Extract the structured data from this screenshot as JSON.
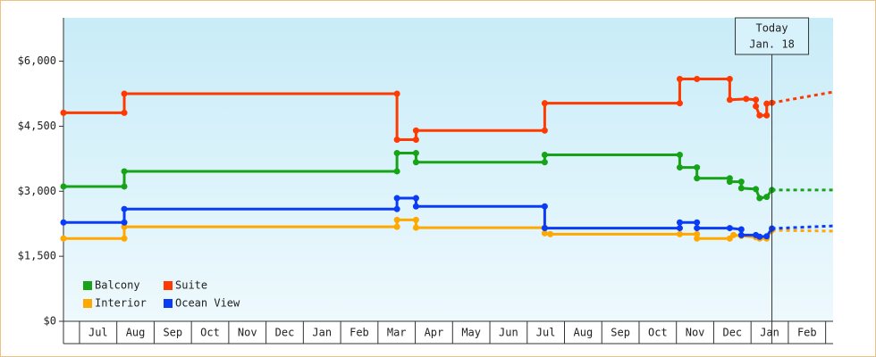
{
  "chart_data": {
    "type": "line",
    "ylim": [
      0,
      7000
    ],
    "yticks": [
      {
        "value": 0,
        "label": "$0"
      },
      {
        "value": 1500,
        "label": "$1,500"
      },
      {
        "value": 3000,
        "label": "$3,000"
      },
      {
        "value": 4500,
        "label": "$4,500"
      },
      {
        "value": 6000,
        "label": "$6,000"
      }
    ],
    "xlim": [
      -0.43,
      20.2
    ],
    "xticks": [
      {
        "value": 0,
        "label": "Jul"
      },
      {
        "value": 1,
        "label": "Aug"
      },
      {
        "value": 2,
        "label": "Sep"
      },
      {
        "value": 3,
        "label": "Oct"
      },
      {
        "value": 4,
        "label": "Nov"
      },
      {
        "value": 5,
        "label": "Dec"
      },
      {
        "value": 6,
        "label": "Jan"
      },
      {
        "value": 7,
        "label": "Feb"
      },
      {
        "value": 8,
        "label": "Mar"
      },
      {
        "value": 9,
        "label": "Apr"
      },
      {
        "value": 10,
        "label": "May"
      },
      {
        "value": 11,
        "label": "Jun"
      },
      {
        "value": 12,
        "label": "Jul"
      },
      {
        "value": 13,
        "label": "Aug"
      },
      {
        "value": 14,
        "label": "Sep"
      },
      {
        "value": 15,
        "label": "Oct"
      },
      {
        "value": 16,
        "label": "Nov"
      },
      {
        "value": 17,
        "label": "Dec"
      },
      {
        "value": 18,
        "label": "Jan"
      },
      {
        "value": 19,
        "label": "Feb"
      }
    ],
    "today": {
      "x": 18.56,
      "label": [
        "Today",
        "Jan. 18"
      ]
    },
    "series": [
      {
        "name": "Balcony",
        "color": "#17a317",
        "x": [
          -0.43,
          1.2,
          1.2,
          8.51,
          8.51,
          9.02,
          9.02,
          12.47,
          12.47,
          16.09,
          16.09,
          16.55,
          16.55,
          17.43,
          17.43,
          17.74,
          17.74,
          18.13,
          18.23,
          18.42,
          18.56
        ],
        "values": [
          3110,
          3110,
          3460,
          3460,
          3880,
          3880,
          3670,
          3670,
          3840,
          3840,
          3550,
          3550,
          3300,
          3300,
          3220,
          3220,
          3070,
          3050,
          2840,
          2870,
          3030
        ],
        "forecast": {
          "x": [
            18.56,
            20.2
          ],
          "values": [
            3030,
            3030
          ]
        }
      },
      {
        "name": "Suite",
        "color": "#ff3a00",
        "x": [
          -0.43,
          1.2,
          1.2,
          8.51,
          8.51,
          9.02,
          9.02,
          12.47,
          12.47,
          16.09,
          16.09,
          16.55,
          17.43,
          17.43,
          17.87,
          18.13,
          18.13,
          18.23,
          18.42,
          18.42,
          18.56
        ],
        "values": [
          4810,
          4810,
          5250,
          5250,
          4190,
          4190,
          4400,
          4400,
          5030,
          5030,
          5590,
          5590,
          5590,
          5110,
          5130,
          5110,
          4960,
          4750,
          4750,
          5020,
          5040
        ],
        "forecast": {
          "x": [
            18.56,
            20.2
          ],
          "values": [
            5040,
            5290
          ]
        }
      },
      {
        "name": "Interior",
        "color": "#ffa800",
        "x": [
          -0.43,
          1.2,
          1.2,
          8.51,
          8.51,
          9.02,
          9.02,
          12.47,
          12.47,
          12.62,
          16.09,
          16.55,
          16.55,
          17.43,
          17.53,
          17.74,
          18.13,
          18.23,
          18.42,
          18.56
        ],
        "values": [
          1910,
          1910,
          2180,
          2180,
          2340,
          2340,
          2160,
          2160,
          2030,
          2010,
          2010,
          2010,
          1910,
          1910,
          1990,
          1970,
          1940,
          1910,
          1910,
          2100
        ],
        "forecast": {
          "x": [
            18.56,
            20.2
          ],
          "values": [
            2100,
            2080
          ]
        }
      },
      {
        "name": "Ocean View",
        "color": "#0a3cf5",
        "x": [
          -0.43,
          1.2,
          1.2,
          8.51,
          8.51,
          9.02,
          9.02,
          12.47,
          12.47,
          16.09,
          16.09,
          16.55,
          16.55,
          17.43,
          17.74,
          17.74,
          18.13,
          18.23,
          18.42,
          18.56
        ],
        "values": [
          2280,
          2280,
          2590,
          2590,
          2840,
          2840,
          2650,
          2650,
          2150,
          2150,
          2280,
          2280,
          2150,
          2150,
          2120,
          1990,
          1990,
          1950,
          1960,
          2140
        ],
        "forecast": {
          "x": [
            18.56,
            20.2
          ],
          "values": [
            2140,
            2200
          ]
        }
      }
    ]
  }
}
